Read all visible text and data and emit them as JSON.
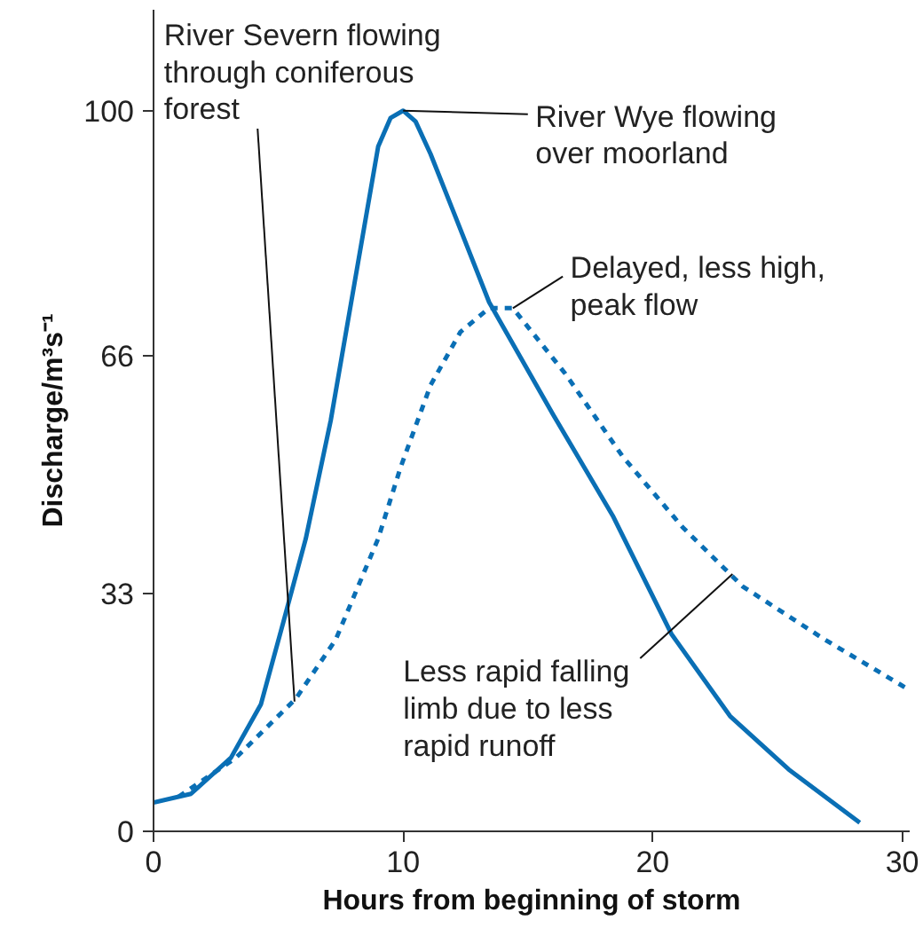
{
  "chart_data": {
    "type": "line",
    "xlabel": "Hours from beginning of storm",
    "ylabel": "Discharge/m³s⁻¹",
    "xlim": [
      0,
      30.3
    ],
    "ylim": [
      0,
      114
    ],
    "xticks": [
      0,
      10,
      20,
      30
    ],
    "yticks": [
      0,
      33,
      66,
      100
    ],
    "series": [
      {
        "color": "#0a6fb5",
        "line_style": "solid",
        "x": [
          0,
          1.5,
          3.1,
          4.3,
          5.2,
          6.1,
          7.1,
          8.05,
          9.0,
          9.5,
          10,
          10.5,
          11.1,
          12.05,
          13.45,
          16.0,
          18.4,
          20.75,
          23.1,
          25.45,
          28.3
        ],
        "values": [
          4,
          5.2,
          10.2,
          17.6,
          29,
          40.6,
          57,
          76,
          95,
          99,
          100,
          98.5,
          94,
          85.7,
          73.4,
          57.9,
          43.8,
          27.4,
          16,
          8.6,
          1.2
        ]
      },
      {
        "color": "#0a6fb5",
        "line_style": "dashed",
        "x": [
          1,
          3.3,
          5.7,
          7.3,
          9.0,
          9.9,
          11.1,
          12.3,
          13.45,
          14.4,
          16.5,
          18.8,
          21.2,
          23.6,
          26.9,
          30.1
        ],
        "values": [
          4.8,
          10.2,
          18.4,
          26.6,
          40.6,
          50.5,
          61.9,
          69.3,
          72.6,
          72.6,
          63.5,
          52,
          42.2,
          34,
          26.6,
          20
        ]
      }
    ],
    "annotations": [
      {
        "text": "River Severn flowing\nthrough coniferous\nforest",
        "x": 5.65,
        "y": 18
      },
      {
        "text": "River Wye flowing\nover moorland",
        "x": 10,
        "y": 100
      },
      {
        "text": "Delayed, less high,\npeak flow",
        "x": 14.4,
        "y": 72.6
      },
      {
        "text": "Less rapid falling\nlimb due to less\nrapid runoff",
        "x": 23.2,
        "y": 35.7
      }
    ]
  }
}
